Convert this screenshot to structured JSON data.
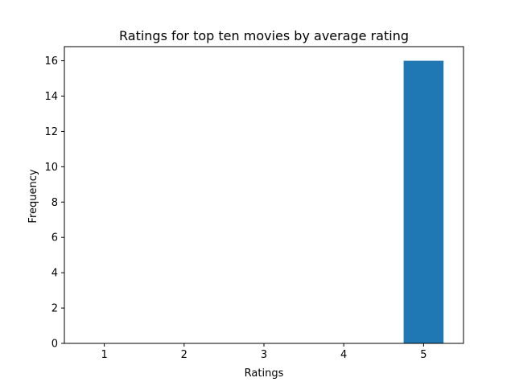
{
  "chart_data": {
    "type": "bar",
    "title": "Ratings for top ten movies by average rating",
    "xlabel": "Ratings",
    "ylabel": "Frequency",
    "categories": [
      "1",
      "2",
      "3",
      "4",
      "5"
    ],
    "x": [
      1,
      2,
      3,
      4,
      5
    ],
    "values": [
      0,
      0,
      0,
      0,
      16
    ],
    "bar_width": 0.5,
    "xlim": [
      0.5,
      5.5
    ],
    "ylim": [
      0,
      16.8
    ],
    "yticks": [
      0,
      2,
      4,
      6,
      8,
      10,
      12,
      14,
      16
    ],
    "xticks": [
      1,
      2,
      3,
      4,
      5
    ],
    "bar_color": "#1f77b4",
    "grid": false
  }
}
